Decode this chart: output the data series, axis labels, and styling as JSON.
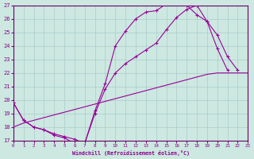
{
  "xlabel": "Windchill (Refroidissement éolien,°C)",
  "bg_color": "#cce8e0",
  "grid_color": "#aacccc",
  "line_color": "#990099",
  "curve1_x": [
    0,
    1,
    2,
    3,
    4,
    5,
    6,
    7,
    8,
    9,
    10,
    11,
    12,
    13,
    14,
    15,
    16,
    17,
    18,
    19,
    20,
    21,
    22
  ],
  "curve1_y": [
    19.8,
    18.5,
    18.0,
    17.8,
    17.4,
    17.2,
    16.8,
    16.8,
    19.2,
    21.2,
    24.0,
    25.1,
    26.0,
    26.5,
    26.6,
    27.1,
    27.1,
    27.0,
    26.3,
    25.8,
    24.8,
    23.2,
    22.2
  ],
  "curve2_x": [
    0,
    1,
    2,
    3,
    4,
    5,
    6,
    7,
    8,
    9,
    10,
    11,
    12,
    13,
    14,
    15,
    16,
    17,
    18,
    19,
    20,
    21,
    22,
    23
  ],
  "curve2_y": [
    19.8,
    18.5,
    18.0,
    17.8,
    17.5,
    17.3,
    17.1,
    16.8,
    19.0,
    20.8,
    22.0,
    22.7,
    23.2,
    23.7,
    24.2,
    25.2,
    26.1,
    26.7,
    27.0,
    25.8,
    23.8,
    22.2,
    22.0,
    null
  ],
  "curve3_x": [
    0,
    1,
    2,
    3,
    4,
    5,
    6,
    7,
    8,
    9,
    10,
    11,
    12,
    13,
    14,
    15,
    16,
    17,
    18,
    19,
    20,
    21,
    22,
    23
  ],
  "curve3_y": [
    18.0,
    18.3,
    18.5,
    18.7,
    18.9,
    19.1,
    19.3,
    19.5,
    19.7,
    19.9,
    20.1,
    20.3,
    20.5,
    20.7,
    20.9,
    21.1,
    21.3,
    21.5,
    21.7,
    21.9,
    22.0,
    22.0,
    22.0,
    22.0
  ],
  "ylim": [
    17,
    27
  ],
  "xlim": [
    0,
    23
  ],
  "yticks": [
    17,
    18,
    19,
    20,
    21,
    22,
    23,
    24,
    25,
    26,
    27
  ],
  "xticks": [
    0,
    1,
    2,
    3,
    4,
    5,
    6,
    7,
    8,
    9,
    10,
    11,
    12,
    13,
    14,
    15,
    16,
    17,
    18,
    19,
    20,
    21,
    22,
    23
  ],
  "font_color": "#880088",
  "spine_color": "#660066"
}
